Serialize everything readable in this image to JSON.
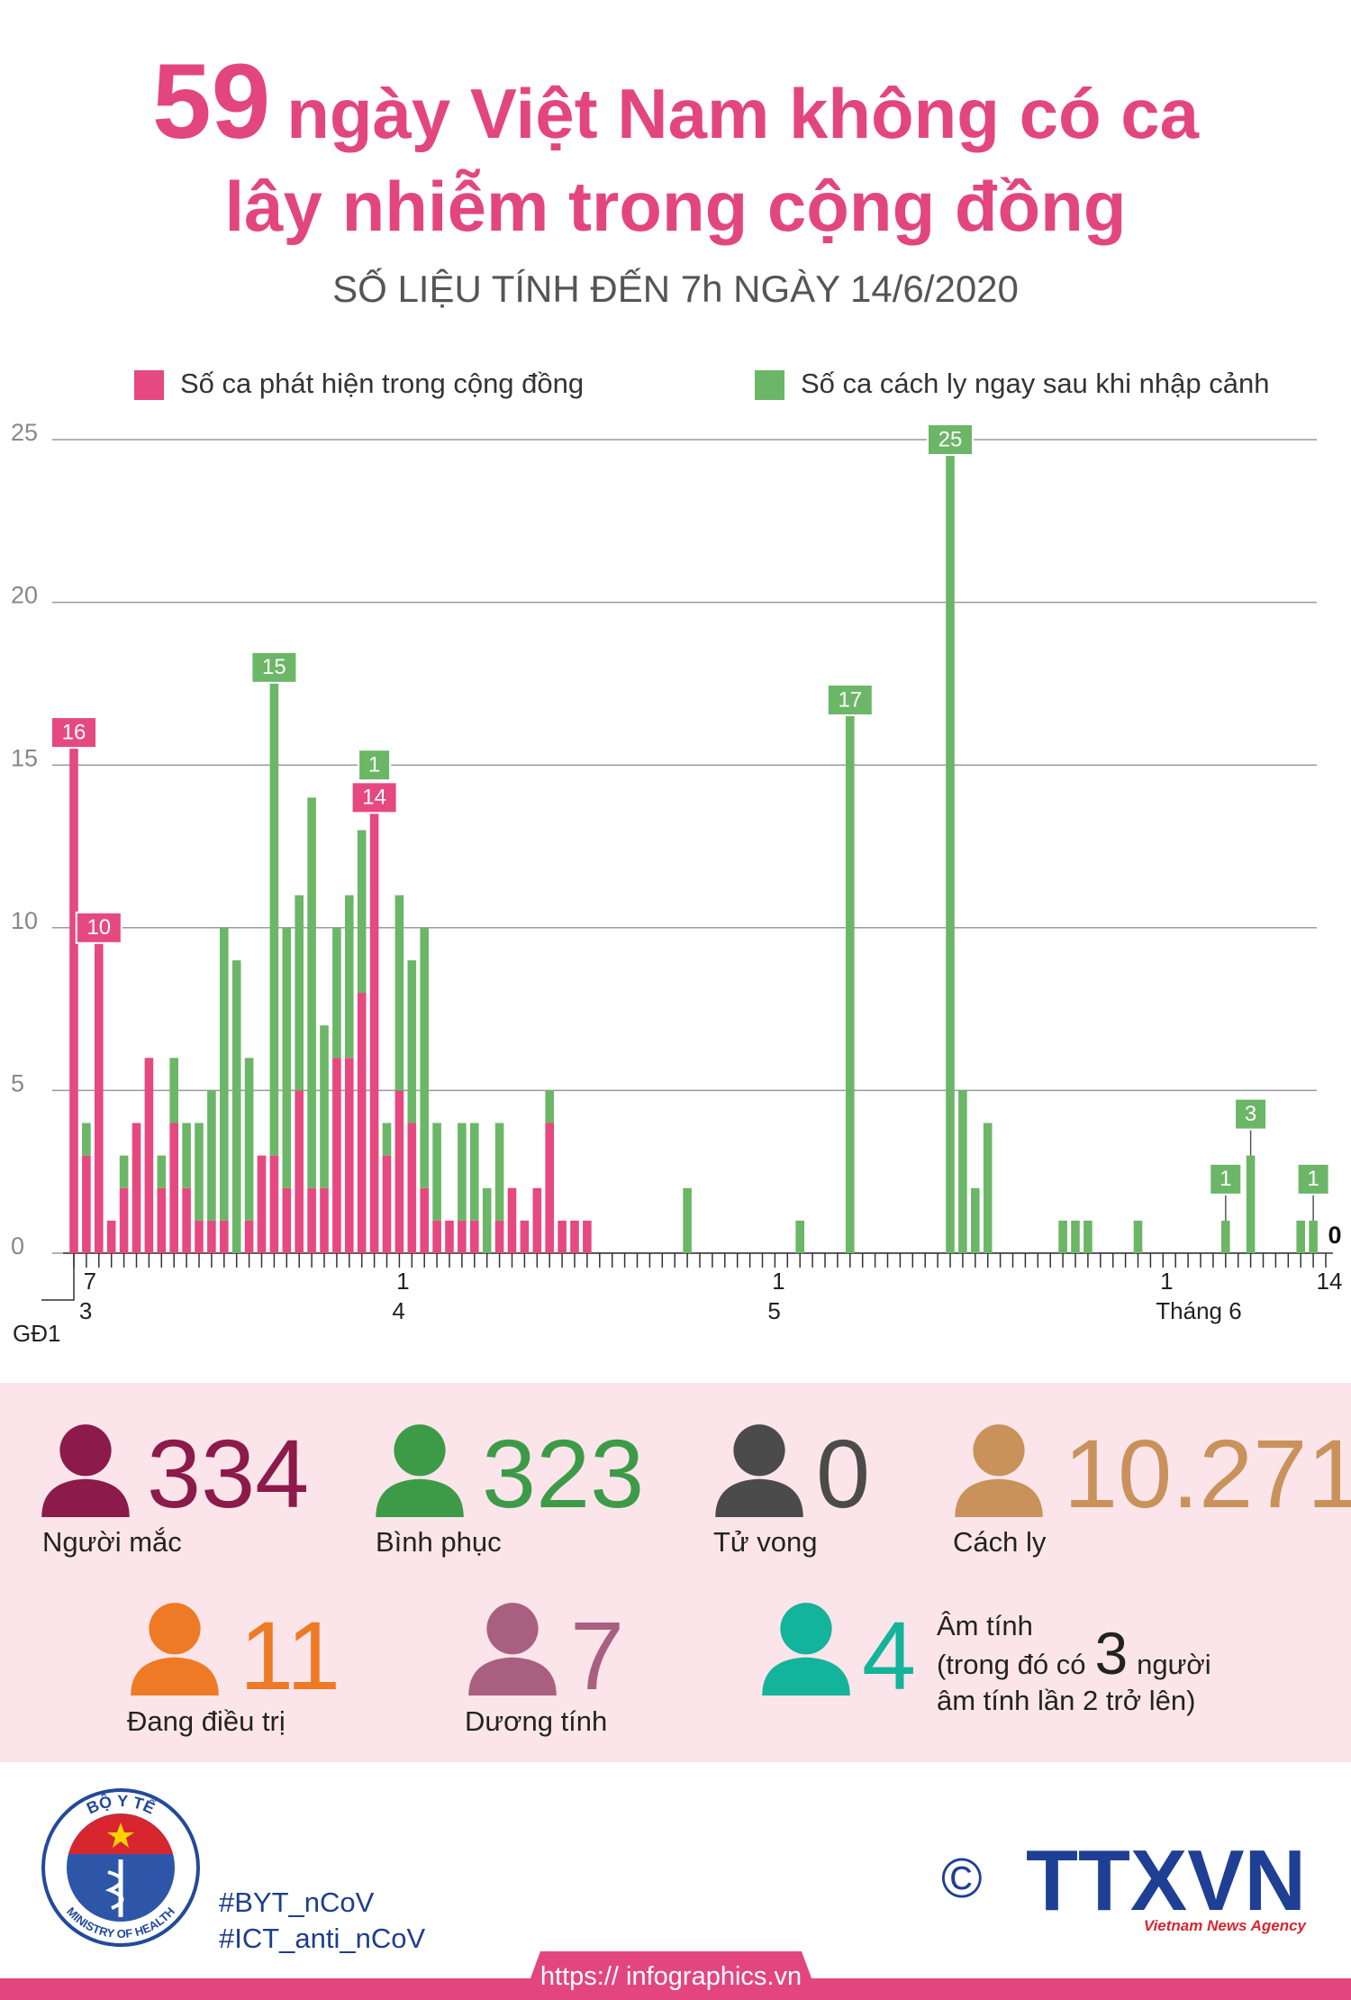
{
  "header": {
    "title_number": "59",
    "title_line1": "ngày Việt Nam không có ca",
    "title_line2": "lây nhiễm trong cộng đồng",
    "subtitle": "SỐ LIỆU TÍNH ĐẾN 7h NGÀY 14/6/2020"
  },
  "chart_data": {
    "type": "stacked_bar",
    "grid": true,
    "ylim": [
      0,
      25
    ],
    "yticks": [
      0,
      5,
      10,
      15,
      20,
      25
    ],
    "phase_label": "GĐ1",
    "categories": [
      null,
      "7",
      null,
      null,
      null,
      null,
      null,
      null,
      null,
      null,
      null,
      null,
      null,
      null,
      null,
      null,
      null,
      null,
      null,
      null,
      null,
      null,
      null,
      null,
      null,
      null,
      "1",
      null,
      null,
      null,
      null,
      null,
      null,
      null,
      null,
      null,
      null,
      null,
      null,
      null,
      null,
      null,
      null,
      null,
      null,
      null,
      null,
      null,
      null,
      null,
      null,
      null,
      null,
      null,
      null,
      null,
      "1",
      null,
      null,
      null,
      null,
      null,
      null,
      null,
      null,
      null,
      null,
      null,
      null,
      null,
      null,
      null,
      null,
      null,
      null,
      null,
      null,
      null,
      null,
      null,
      null,
      null,
      null,
      null,
      null,
      null,
      null,
      "1",
      null,
      null,
      null,
      null,
      null,
      null,
      null,
      null,
      null,
      null,
      null,
      null,
      "14"
    ],
    "month_labels": [
      null,
      "3",
      null,
      null,
      null,
      null,
      null,
      null,
      null,
      null,
      null,
      null,
      null,
      null,
      null,
      null,
      null,
      null,
      null,
      null,
      null,
      null,
      null,
      null,
      null,
      null,
      "4",
      null,
      null,
      null,
      null,
      null,
      null,
      null,
      null,
      null,
      null,
      null,
      null,
      null,
      null,
      null,
      null,
      null,
      null,
      null,
      null,
      null,
      null,
      null,
      null,
      null,
      null,
      null,
      null,
      null,
      "5",
      null,
      null,
      null,
      null,
      null,
      null,
      null,
      null,
      null,
      null,
      null,
      null,
      null,
      null,
      null,
      null,
      null,
      null,
      null,
      null,
      null,
      null,
      null,
      null,
      null,
      null,
      null,
      null,
      null,
      null,
      "Tháng 6",
      null,
      null,
      null,
      null,
      null,
      null,
      null,
      null,
      null,
      null,
      null,
      null,
      null
    ],
    "series": [
      {
        "name": "Số ca phát hiện trong cộng đồng",
        "color": "#e5497f",
        "values": [
          16,
          3,
          10,
          1,
          2,
          4,
          6,
          2,
          4,
          2,
          1,
          1,
          1,
          0,
          1,
          3,
          3,
          2,
          5,
          2,
          2,
          6,
          6,
          8,
          14,
          3,
          5,
          4,
          2,
          1,
          1,
          1,
          1,
          0,
          1,
          2,
          1,
          2,
          4,
          1,
          1,
          1,
          0,
          0,
          0,
          0,
          0,
          0,
          0,
          0,
          0,
          0,
          0,
          0,
          0,
          0,
          0,
          0,
          0,
          0,
          0,
          0,
          0,
          0,
          0,
          0,
          0,
          0,
          0,
          0,
          0,
          0,
          0,
          0,
          0,
          0,
          0,
          0,
          0,
          0,
          0,
          0,
          0,
          0,
          0,
          0,
          0,
          0,
          0,
          0,
          0,
          0,
          0,
          0,
          0,
          0,
          0,
          0,
          0,
          0,
          0
        ],
        "value_labels": [
          "16",
          null,
          "10",
          null,
          null,
          null,
          null,
          null,
          null,
          null,
          null,
          null,
          null,
          null,
          null,
          null,
          null,
          null,
          null,
          null,
          null,
          null,
          null,
          null,
          "14",
          null,
          null,
          null,
          null,
          null,
          null,
          null,
          null,
          null,
          null,
          null,
          null,
          null,
          null,
          null,
          null,
          null,
          null,
          null,
          null,
          null,
          null,
          null,
          null,
          null,
          null,
          null,
          null,
          null,
          null,
          null,
          null,
          null,
          null,
          null,
          null,
          null,
          null,
          null,
          null,
          null,
          null,
          null,
          null,
          null,
          null,
          null,
          null,
          null,
          null,
          null,
          null,
          null,
          null,
          null,
          null,
          null,
          null,
          null,
          null,
          null,
          null,
          null,
          null,
          null,
          null,
          null,
          null,
          null,
          null,
          null,
          null,
          null,
          null,
          null,
          null
        ]
      },
      {
        "name": "Số ca cách ly ngay sau khi nhập cảnh",
        "color": "#6cb667",
        "values": [
          0,
          1,
          0,
          0,
          1,
          0,
          0,
          1,
          2,
          2,
          3,
          4,
          9,
          9,
          5,
          0,
          15,
          8,
          6,
          12,
          5,
          4,
          5,
          5,
          1,
          1,
          6,
          5,
          8,
          3,
          0,
          3,
          3,
          2,
          3,
          0,
          0,
          0,
          1,
          0,
          0,
          0,
          0,
          0,
          0,
          0,
          0,
          0,
          0,
          2,
          0,
          0,
          0,
          0,
          0,
          0,
          0,
          0,
          1,
          0,
          0,
          0,
          17,
          0,
          0,
          0,
          0,
          0,
          0,
          0,
          25,
          5,
          2,
          4,
          0,
          0,
          0,
          0,
          0,
          1,
          1,
          1,
          0,
          0,
          0,
          1,
          0,
          0,
          0,
          0,
          0,
          0,
          1,
          0,
          3,
          0,
          0,
          0,
          1,
          1,
          0
        ],
        "value_labels": [
          null,
          null,
          null,
          null,
          null,
          null,
          null,
          null,
          null,
          null,
          null,
          null,
          null,
          null,
          null,
          null,
          "15",
          null,
          null,
          null,
          null,
          null,
          null,
          null,
          "1",
          null,
          null,
          null,
          null,
          null,
          null,
          null,
          null,
          null,
          null,
          null,
          null,
          null,
          null,
          null,
          null,
          null,
          null,
          null,
          null,
          null,
          null,
          null,
          null,
          null,
          null,
          null,
          null,
          null,
          null,
          null,
          null,
          null,
          null,
          null,
          null,
          null,
          "17",
          null,
          null,
          null,
          null,
          null,
          null,
          null,
          "25",
          null,
          null,
          null,
          null,
          null,
          null,
          null,
          null,
          null,
          null,
          null,
          null,
          null,
          null,
          null,
          null,
          null,
          null,
          null,
          null,
          null,
          "1",
          null,
          "3",
          null,
          null,
          null,
          null,
          "1",
          "0"
        ]
      }
    ]
  },
  "stats": [
    {
      "value": "334",
      "label": "Người mắc"
    },
    {
      "value": "323",
      "label": "Bình phục"
    },
    {
      "value": "0",
      "label": "Tử vong"
    },
    {
      "value": "10.271",
      "label": "Cách ly"
    },
    {
      "value": "11",
      "label": "Đang điều trị"
    },
    {
      "value": "7",
      "label": "Dương tính"
    },
    {
      "value": "4",
      "label": "Âm tính",
      "note_before": "(trong đó có",
      "note_number": "3",
      "note_after": "người",
      "note_line3": "âm tính lần 2 trở lên)"
    }
  ],
  "footer": {
    "logo_top": "BỘ Y TẾ",
    "logo_bottom": "MINISTRY OF HEALTH",
    "hashtags": [
      "#BYT_nCoV",
      "#ICT_anti_nCoV"
    ],
    "copyright": "©",
    "agency": "TTXVN",
    "agency_sub": "Vietnam News Agency",
    "url": "https:// infographics.vn"
  }
}
